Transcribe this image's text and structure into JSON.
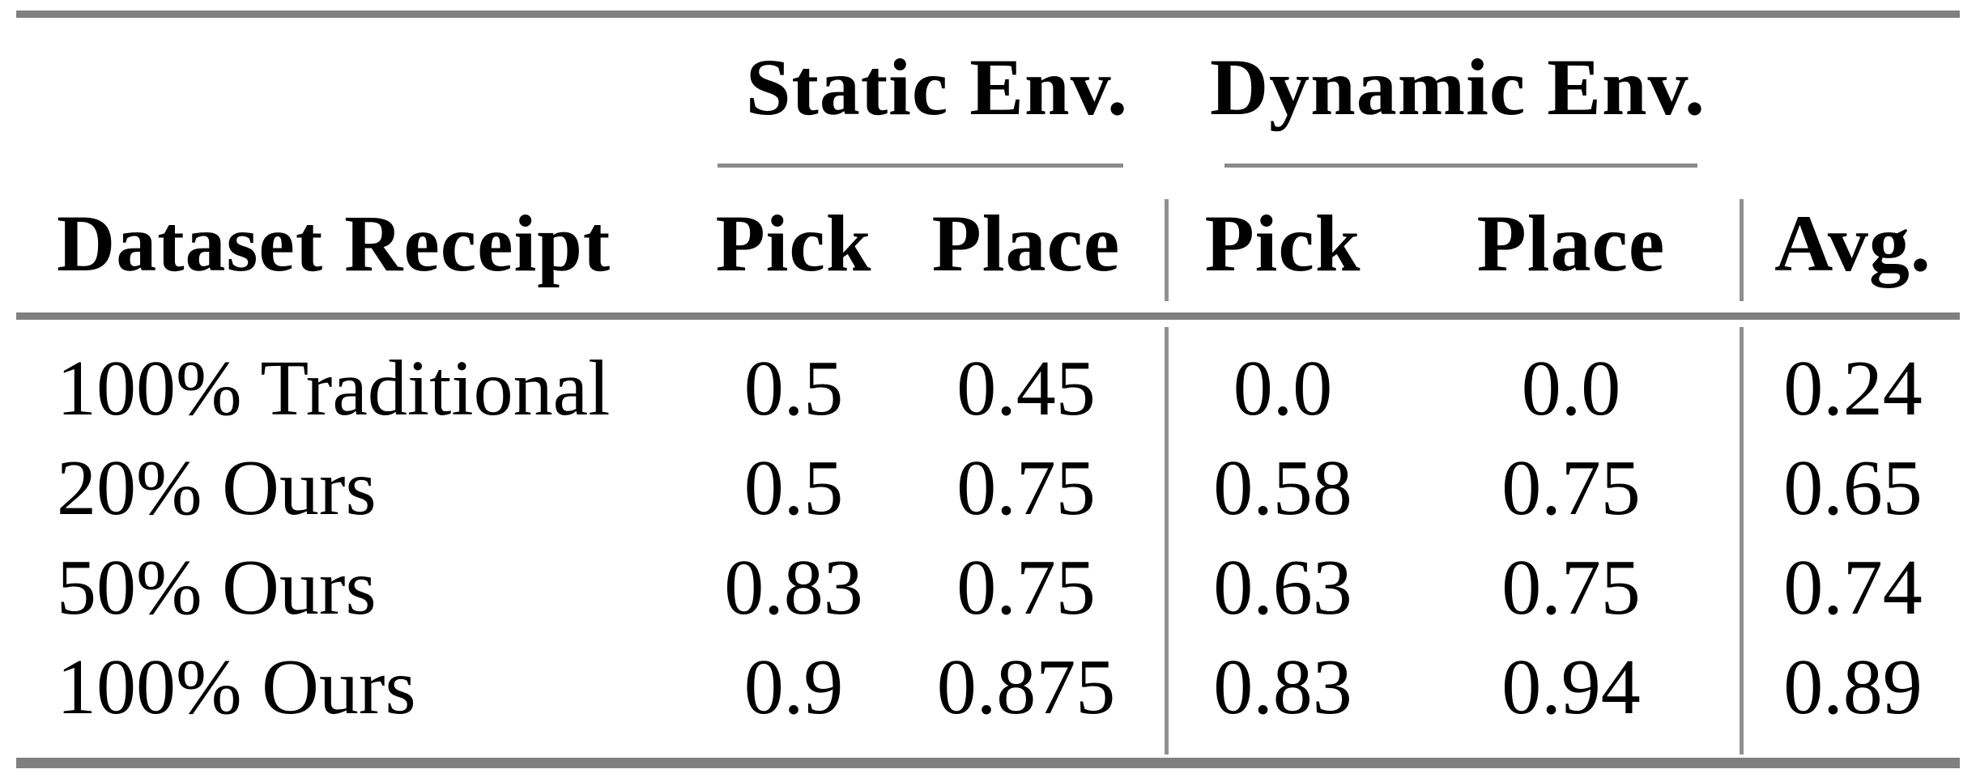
{
  "table": {
    "col_groups": [
      {
        "label": "Static Env."
      },
      {
        "label": "Dynamic Env."
      }
    ],
    "headers": {
      "row_label": "Dataset Receipt",
      "static_pick": "Pick",
      "static_place": "Place",
      "dynamic_pick": "Pick",
      "dynamic_place": "Place",
      "avg": "Avg."
    },
    "rows": [
      {
        "label": "100% Traditional",
        "static_pick": "0.5",
        "static_place": "0.45",
        "dynamic_pick": "0.0",
        "dynamic_place": "0.0",
        "avg": "0.24"
      },
      {
        "label": "20% Ours",
        "static_pick": "0.5",
        "static_place": "0.75",
        "dynamic_pick": "0.58",
        "dynamic_place": "0.75",
        "avg": "0.65"
      },
      {
        "label": "50% Ours",
        "static_pick": "0.83",
        "static_place": "0.75",
        "dynamic_pick": "0.63",
        "dynamic_place": "0.75",
        "avg": "0.74"
      },
      {
        "label": "100% Ours",
        "static_pick": "0.9",
        "static_place": "0.875",
        "dynamic_pick": "0.83",
        "dynamic_place": "0.94",
        "avg": "0.89"
      }
    ],
    "colors": {
      "rule": "#7f7f7f",
      "cmidrule": "#8a8a8a",
      "divider": "#909090",
      "text": "#000000",
      "background": "#ffffff"
    }
  },
  "chart_data": {
    "type": "table",
    "title": "",
    "columns": [
      "Dataset Receipt",
      "Static Env. Pick",
      "Static Env. Place",
      "Dynamic Env. Pick",
      "Dynamic Env. Place",
      "Avg."
    ],
    "rows": [
      [
        "100% Traditional",
        0.5,
        0.45,
        0.0,
        0.0,
        0.24
      ],
      [
        "20% Ours",
        0.5,
        0.75,
        0.58,
        0.75,
        0.65
      ],
      [
        "50% Ours",
        0.83,
        0.75,
        0.63,
        0.75,
        0.74
      ],
      [
        "100% Ours",
        0.9,
        0.875,
        0.83,
        0.94,
        0.89
      ]
    ]
  }
}
